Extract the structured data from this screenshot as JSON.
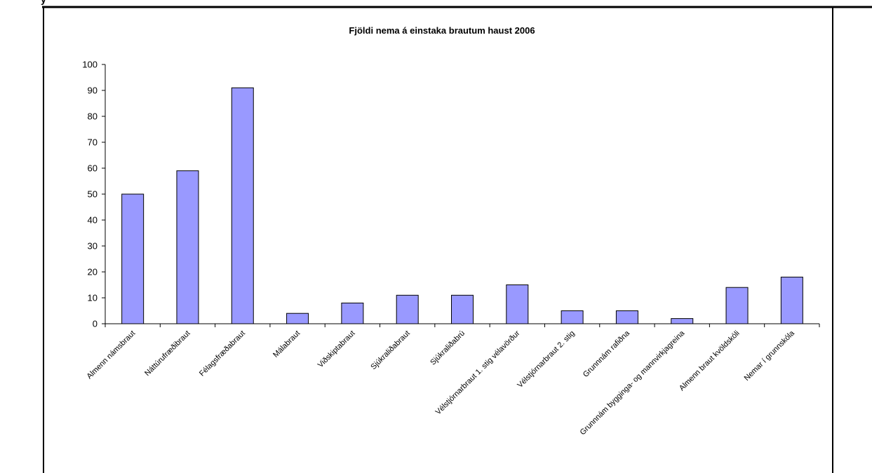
{
  "page": {
    "top_fragment": "y"
  },
  "colors": {
    "bar_fill": "#9999FF",
    "bar_stroke": "#000000",
    "axis": "#000000",
    "background": "#FFFFFF"
  },
  "chart_data": {
    "type": "bar",
    "title": "Fjöldi nema á einstaka brautum haust 2006",
    "xlabel": "",
    "ylabel": "",
    "ylim": [
      0,
      100
    ],
    "yticks": [
      0,
      10,
      20,
      30,
      40,
      50,
      60,
      70,
      80,
      90,
      100
    ],
    "grid": false,
    "legend": "none",
    "categories": [
      "Almenn námsbraut",
      "Náttúrufræðibraut",
      "Félagsfræðabraut",
      "Málabraut",
      "Viðskiptabraut",
      "Sjúkraliðabraut",
      "Sjúkraliðabrú",
      "Vélstjórnarbraut 1. stig vélavörður",
      "Vélstjórnarbraut 2. stig",
      "Grunnnám rafiðna",
      "Grunnnám bygginga- og mannvirkjagreina",
      "Almenn braut kvöldskóli",
      "Nemar í grunnskóla"
    ],
    "values": [
      50,
      59,
      91,
      4,
      8,
      11,
      11,
      15,
      5,
      5,
      2,
      14,
      18
    ]
  }
}
